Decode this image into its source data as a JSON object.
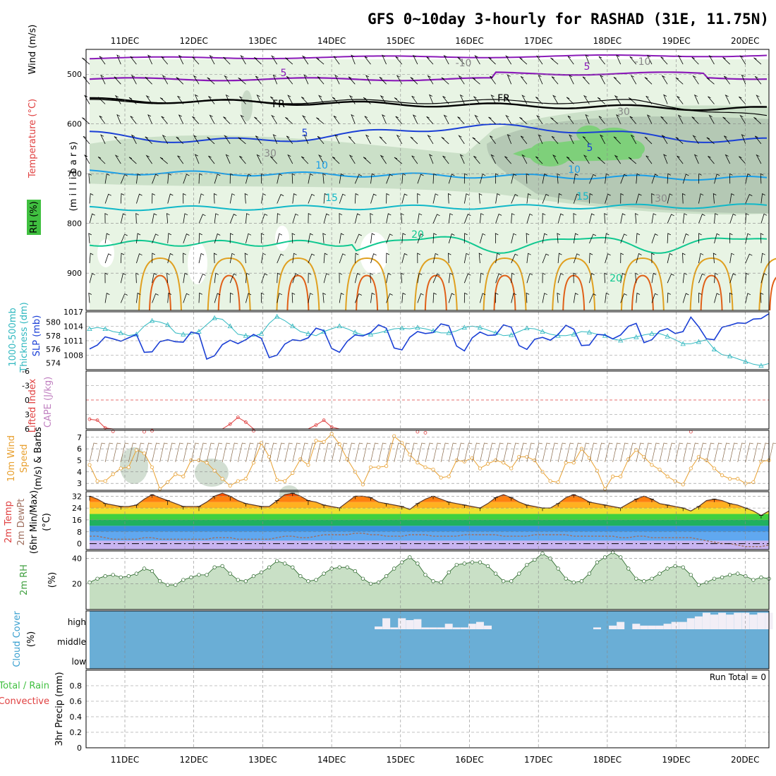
{
  "title": "GFS 0~10day 3-hourly for RASHAD (31E, 11.75N)",
  "dates": [
    "11DEC",
    "12DEC",
    "13DEC",
    "14DEC",
    "15DEC",
    "16DEC",
    "17DEC",
    "18DEC",
    "19DEC",
    "20DEC"
  ],
  "colors": {
    "rh_light": "#e8f4e4",
    "rh_mid": "#cbe0c8",
    "rh_dark": "#b4c8b4",
    "rh_bright": "#7ed07a",
    "temp_purple": "#8a1ab8",
    "temp_blue": "#1a3fd6",
    "temp_lblue": "#1a9fe8",
    "temp_cyan": "#10b8c8",
    "temp_green": "#10c890",
    "temp_orange": "#e0a020",
    "temp_red": "#e06018",
    "slp": "#1a3fd6",
    "thickness": "#30b8c0",
    "li": "#e04040",
    "wind": "#e8a030",
    "tmax": "#ff6010",
    "dewpoint": "#a07060",
    "rh2m": "#40a040",
    "cloud": "#6aaed6",
    "cloud_high": "#f2eef6"
  },
  "panels": {
    "upper_air": {
      "ylabel_wind": "Wind (m/s)",
      "ylabel_temp": "Temperature (°C)",
      "ylabel_rh": "RH (%)",
      "ylabel_p": "(m i l l i b a r s)",
      "yticks": [
        "500",
        "600",
        "700",
        "800",
        "900"
      ],
      "contour_labels": [
        "5",
        "5",
        "-10",
        "-10",
        "FR",
        "FR",
        "5",
        "5",
        "10",
        "10",
        "15",
        "15",
        "20",
        "20",
        "30",
        "30",
        "30"
      ]
    },
    "slp": {
      "ylabel_left": "1000-500mb",
      "ylabel_left2": "Thickness (dm)",
      "ylabel_right": "SLP (mb)",
      "yticks_left": [
        "580",
        "578",
        "576",
        "574"
      ],
      "yticks_right": [
        "1017",
        "1014",
        "1011",
        "1008"
      ]
    },
    "li": {
      "ylabel_li": "Lifted Index",
      "ylabel_cape": "CAPE (J/kg)",
      "yticks": [
        "-6",
        "-3",
        "0",
        "3",
        "6"
      ]
    },
    "wind10m": {
      "ylabel1": "10m Wind",
      "ylabel2": "Speed",
      "ylabel3": "(m/s) & Barbs",
      "yticks": [
        "7",
        "6",
        "5",
        "4",
        "3"
      ]
    },
    "temp2m": {
      "ylabel1": "2m Temp",
      "ylabel2": "2m DewPt",
      "ylabel3": "(6hr Min/Max)",
      "ylabel4": "(°C)",
      "yticks": [
        "32",
        "24",
        "16",
        "8",
        "0"
      ]
    },
    "rh2m": {
      "ylabel1": "2m RH",
      "ylabel2": "(%)",
      "yticks": [
        "40",
        "20"
      ]
    },
    "cloud": {
      "ylabel1": "Cloud Cover",
      "ylabel2": "(%)",
      "levels": [
        "high",
        "middle",
        "low"
      ]
    },
    "precip": {
      "ylabel1": "Total / Rain",
      "ylabel2": "Convective",
      "ylabel3": "3hr Precip (mm)",
      "run_total": "Run Total = 0",
      "yticks": [
        "0.8",
        "0.6",
        "0.4",
        "0.2",
        "0"
      ]
    }
  },
  "chart_data": {
    "type": "line",
    "x_unit": "3-hourly steps from 10DEC 12Z",
    "slp_mb": [
      1009.3,
      1010.1,
      1011.8,
      1011.4,
      1010.9,
      1011.6,
      1012.3,
      1008.6,
      1008.7,
      1010.8,
      1011.2,
      1010.8,
      1010.7,
      1012.8,
      1012.4,
      1007.2,
      1007.9,
      1010.2,
      1011.1,
      1010.4,
      1011.2,
      1012.3,
      1011.5,
      1007.5,
      1008.0,
      1010.3,
      1011.2,
      1011.0,
      1011.6,
      1013.6,
      1013.1,
      1009.4,
      1008.6,
      1010.9,
      1012.2,
      1012.0,
      1012.7,
      1014.3,
      1013.6,
      1009.5,
      1009.1,
      1011.7,
      1012.9,
      1012.5,
      1012.7,
      1014.5,
      1014.1,
      1009.9,
      1008.9,
      1011.6,
      1012.8,
      1012.1,
      1012.2,
      1014.3,
      1013.8,
      1010.0,
      1009.2,
      1011.3,
      1011.7,
      1011.1,
      1012.3,
      1014.2,
      1013.4,
      1010.0,
      1010.1,
      1012.3,
      1012.2,
      1011.4,
      1012.2,
      1014.0,
      1014.6,
      1010.6,
      1011.2,
      1013.0,
      1013.5,
      1012.5,
      1012.9,
      1015.9,
      1013.9,
      1011.4,
      1011.2,
      1013.8,
      1014.2,
      1014.7,
      1014.6,
      1015.5,
      1015.6,
      1016.6
    ],
    "thickness_dm": [
      579.0,
      579.2,
      579.0,
      578.6,
      578.4,
      578.0,
      578.2,
      579.4,
      580.2,
      580.0,
      579.6,
      578.4,
      578.2,
      578.2,
      578.6,
      579.6,
      580.6,
      580.4,
      579.4,
      578.2,
      578.0,
      577.9,
      578.3,
      579.8,
      580.8,
      580.2,
      579.4,
      578.6,
      578.3,
      578.0,
      578.6,
      579.0,
      579.4,
      579.0,
      578.5,
      578.1,
      578.2,
      578.4,
      578.7,
      579.0,
      579.1,
      579.0,
      579.2,
      579.0,
      578.7,
      578.4,
      578.4,
      578.7,
      579.2,
      579.4,
      579.2,
      578.8,
      578.4,
      578.0,
      578.1,
      578.6,
      579.1,
      579.0,
      578.6,
      578.2,
      578.0,
      578.0,
      578.2,
      578.6,
      578.5,
      578.2,
      578.0,
      577.5,
      577.3,
      577.6,
      577.8,
      578.1,
      578.3,
      578.3,
      577.9,
      577.4,
      576.8,
      576.8,
      577.1,
      577.4,
      576.0,
      575.2,
      575.0,
      574.6,
      574.2,
      573.8,
      573.6,
      573.9
    ],
    "lifted_index": [
      4.0,
      4.2,
      5.8,
      6.5,
      7.0,
      7.0,
      7.0,
      6.6,
      6.4,
      7.0,
      7.0,
      7.0,
      7.0,
      7.0,
      7.0,
      7.0,
      7.0,
      7.0,
      5.0,
      3.6,
      4.6,
      6.4,
      7.0,
      7.0,
      7.0,
      7.0,
      7.0,
      7.0,
      7.0,
      5.2,
      4.2,
      5.6,
      7.0,
      7.0,
      7.0,
      7.0,
      7.0,
      7.0,
      7.0,
      7.0,
      7.0,
      7.0,
      6.6,
      6.8,
      7.0,
      7.0,
      7.0,
      7.0,
      7.0,
      7.0,
      7.0,
      7.0,
      7.0,
      7.0,
      7.0,
      7.0,
      7.0,
      7.0,
      7.0,
      7.0,
      7.0,
      7.0,
      7.0,
      7.0,
      7.0,
      7.0,
      7.0,
      7.0,
      7.0,
      7.0,
      7.0,
      7.0,
      7.0,
      7.0,
      7.0,
      7.0,
      7.0,
      6.6,
      7.0,
      7.0,
      7.0,
      7.0,
      7.0,
      7.0,
      7.0,
      7.0,
      7.0,
      7.0
    ],
    "wind10m_ms": [
      4.6,
      3.2,
      3.2,
      3.8,
      4.3,
      4.4,
      5.9,
      5.6,
      4.4,
      2.5,
      3.1,
      3.8,
      3.6,
      5.0,
      5.0,
      4.8,
      4.1,
      3.4,
      2.8,
      3.2,
      3.4,
      4.8,
      6.5,
      5.3,
      3.3,
      3.2,
      3.9,
      5.1,
      4.6,
      6.7,
      6.6,
      7.3,
      6.4,
      5.1,
      4.0,
      2.9,
      4.4,
      4.4,
      4.5,
      7.1,
      6.5,
      5.5,
      4.8,
      4.4,
      4.2,
      3.5,
      3.6,
      5.0,
      4.9,
      5.2,
      4.3,
      4.7,
      5.0,
      4.8,
      4.3,
      5.3,
      5.3,
      5.0,
      4.0,
      3.2,
      3.1,
      4.8,
      4.8,
      6.0,
      5.2,
      4.1,
      2.5,
      3.6,
      3.6,
      5.1,
      5.9,
      5.3,
      4.6,
      4.2,
      3.6,
      3.2,
      2.9,
      4.3,
      5.3,
      5.0,
      4.3,
      3.7,
      3.4,
      3.4,
      3.0,
      3.1,
      4.9,
      5.0
    ],
    "temp2m_c": [
      29,
      27,
      25,
      24,
      23,
      22,
      24,
      28,
      31,
      28,
      26,
      24,
      23,
      23,
      22,
      26,
      30,
      32,
      29,
      26,
      25,
      24,
      23,
      23,
      27,
      31,
      32,
      29,
      26,
      25,
      24,
      23,
      22,
      26,
      30,
      31,
      29,
      26,
      25,
      24,
      23,
      21,
      25,
      28,
      30,
      28,
      26,
      25,
      24,
      23,
      22,
      25,
      29,
      31,
      29,
      26,
      24,
      23,
      22,
      22,
      25,
      29,
      31,
      29,
      26,
      25,
      24,
      23,
      22,
      25,
      28,
      30,
      28,
      25,
      24,
      23,
      22,
      20,
      23,
      27,
      28,
      27,
      25,
      24,
      22,
      20,
      17,
      20
    ],
    "tmax_c": [
      32,
      30,
      27,
      26,
      25,
      25,
      26,
      30,
      33,
      31,
      29,
      27,
      25,
      25,
      25,
      28,
      32,
      34,
      32,
      29,
      27,
      26,
      25,
      25,
      29,
      33,
      34,
      32,
      29,
      28,
      26,
      25,
      24,
      28,
      32,
      32,
      31,
      28,
      27,
      26,
      25,
      23,
      27,
      30,
      32,
      30,
      28,
      27,
      26,
      25,
      24,
      27,
      31,
      33,
      31,
      28,
      26,
      25,
      24,
      24,
      27,
      31,
      33,
      31,
      28,
      27,
      26,
      25,
      24,
      27,
      30,
      32,
      30,
      27,
      26,
      25,
      24,
      22,
      25,
      29,
      30,
      29,
      27,
      26,
      24,
      22,
      19,
      22
    ],
    "dewpoint_c": [
      5,
      5,
      4,
      3,
      3,
      3,
      3,
      4,
      4,
      3,
      3,
      3,
      3,
      3,
      3,
      3,
      4,
      4,
      4,
      3,
      3,
      3,
      3,
      3,
      4,
      5,
      5,
      4,
      4,
      5,
      6,
      6,
      6,
      6,
      7,
      7,
      6,
      6,
      5,
      5,
      5,
      6,
      6,
      6,
      5,
      5,
      5,
      5,
      6,
      6,
      6,
      6,
      6,
      5,
      5,
      5,
      5,
      6,
      6,
      6,
      6,
      6,
      5,
      5,
      5,
      5,
      5,
      5,
      4,
      4,
      5,
      5,
      4,
      4,
      4,
      4,
      4,
      4,
      3,
      2,
      1,
      0,
      0,
      -1,
      -2,
      -2,
      -2,
      -1
    ],
    "rh2m_pct": [
      21,
      24,
      26,
      27,
      25,
      26,
      28,
      32,
      30,
      22,
      19,
      19,
      23,
      25,
      27,
      27,
      33,
      34,
      28,
      23,
      22,
      26,
      29,
      33,
      38,
      36,
      33,
      26,
      22,
      23,
      28,
      32,
      33,
      33,
      30,
      24,
      20,
      21,
      26,
      32,
      37,
      41,
      36,
      27,
      22,
      21,
      29,
      35,
      36,
      37,
      37,
      34,
      28,
      22,
      22,
      28,
      35,
      39,
      44,
      40,
      32,
      24,
      21,
      22,
      28,
      37,
      41,
      45,
      41,
      32,
      24,
      22,
      24,
      28,
      32,
      34,
      33,
      27,
      19,
      21,
      24,
      25,
      27,
      28,
      26,
      23,
      25,
      24
    ],
    "cloud_high_pct": [
      0,
      0,
      0,
      0,
      0,
      0,
      0,
      0,
      0,
      0,
      0,
      0,
      0,
      0,
      0,
      0,
      0,
      0,
      0,
      0,
      0,
      0,
      0,
      0,
      0,
      0,
      0,
      0,
      0,
      0,
      0,
      0,
      0,
      0,
      0,
      0,
      0,
      15,
      60,
      10,
      60,
      50,
      55,
      10,
      10,
      10,
      30,
      10,
      10,
      30,
      40,
      20,
      0,
      0,
      0,
      0,
      0,
      0,
      0,
      0,
      0,
      0,
      0,
      0,
      0,
      10,
      0,
      20,
      40,
      0,
      30,
      20,
      20,
      20,
      30,
      40,
      40,
      60,
      70,
      90,
      80,
      90,
      80,
      90,
      90,
      80,
      90,
      90
    ],
    "precip_mm": [
      0,
      0,
      0,
      0,
      0,
      0,
      0,
      0,
      0,
      0
    ]
  }
}
